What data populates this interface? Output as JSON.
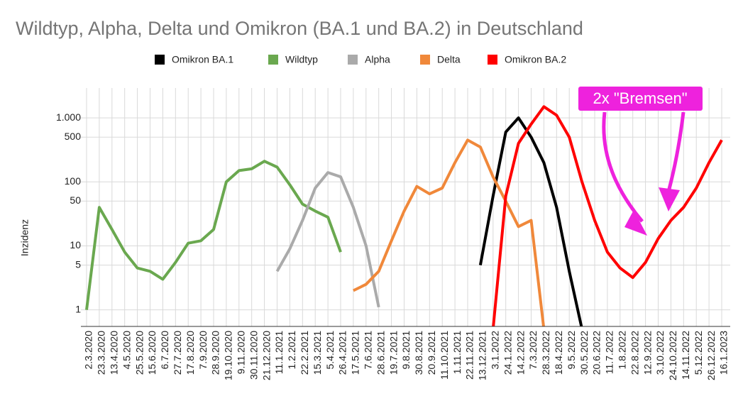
{
  "chart_data": {
    "type": "line",
    "title": "Wildtyp, Alpha, Delta und Omikron (BA.1 und BA.2) in Deutschland",
    "y_label": "Inzidenz",
    "annotation": "2x \"Bremsen\"",
    "log_scale": true,
    "grid": true,
    "legend": "top",
    "categories": [
      "2.3.2020",
      "23.3.2020",
      "13.4.2020",
      "4.5.2020",
      "25.5.2020",
      "15.6.2020",
      "6.7.2020",
      "27.7.2020",
      "17.8.2020",
      "7.9.2020",
      "28.9.2020",
      "19.10.2020",
      "9.11.2020",
      "30.11.2020",
      "21.12.2020",
      "11.1.2021",
      "1.2.2021",
      "22.2.2021",
      "15.3.2021",
      "5.4.2021",
      "26.4.2021",
      "17.5.2021",
      "7.6.2021",
      "28.6.2021",
      "19.7.2021",
      "9.8.2021",
      "30.8.2021",
      "20.9.2021",
      "11.10.2021",
      "1.11.2021",
      "22.11.2021",
      "13.12.2021",
      "3.1.2022",
      "24.1.2022",
      "14.2.2022",
      "7.3.2022",
      "28.3.2022",
      "18.4.2022",
      "9.5.2022",
      "30.5.2022",
      "20.6.2022",
      "11.7.2022",
      "1.8.2022",
      "22.8.2022",
      "12.9.2022",
      "3.10.2022",
      "24.10.2022",
      "14.11.2022",
      "5.12.2022",
      "26.12.2022",
      "16.1.2023"
    ],
    "series": [
      {
        "name": "Omikron BA.1",
        "color": "#000000",
        "values": [
          null,
          null,
          null,
          null,
          null,
          null,
          null,
          null,
          null,
          null,
          null,
          null,
          null,
          null,
          null,
          null,
          null,
          null,
          null,
          null,
          null,
          null,
          null,
          null,
          null,
          null,
          null,
          null,
          null,
          null,
          null,
          5,
          60,
          600,
          1000,
          500,
          200,
          40,
          4,
          0.5,
          null,
          null,
          null,
          null,
          null,
          null,
          null,
          null,
          null,
          null,
          null
        ]
      },
      {
        "name": "Wildtyp",
        "color": "#6aa84f",
        "values": [
          1,
          40,
          18,
          8,
          4.5,
          4,
          3,
          5.5,
          11,
          12,
          18,
          100,
          150,
          160,
          210,
          170,
          90,
          45,
          35,
          28,
          8,
          null,
          null,
          null,
          null,
          null,
          null,
          null,
          null,
          null,
          null,
          null,
          null,
          null,
          null,
          null,
          null,
          null,
          null,
          null,
          null,
          null,
          null,
          null,
          null,
          null,
          null,
          null,
          null,
          null,
          null
        ]
      },
      {
        "name": "Alpha",
        "color": "#aaaaaa",
        "values": [
          null,
          null,
          null,
          null,
          null,
          null,
          null,
          null,
          null,
          null,
          null,
          null,
          null,
          null,
          null,
          4,
          9,
          25,
          80,
          140,
          120,
          40,
          10,
          1.1,
          null,
          null,
          null,
          null,
          null,
          null,
          null,
          null,
          null,
          null,
          null,
          null,
          null,
          null,
          null,
          null,
          null,
          null,
          null,
          null,
          null,
          null,
          null,
          null,
          null,
          null,
          null
        ]
      },
      {
        "name": "Delta",
        "color": "#f0883a",
        "values": [
          null,
          null,
          null,
          null,
          null,
          null,
          null,
          null,
          null,
          null,
          null,
          null,
          null,
          null,
          null,
          null,
          null,
          null,
          null,
          null,
          null,
          2,
          2.5,
          4,
          12,
          35,
          85,
          65,
          80,
          200,
          450,
          350,
          120,
          50,
          20,
          25,
          0.5,
          null,
          null,
          null,
          null,
          null,
          null,
          null,
          null,
          null,
          null,
          null,
          null,
          null,
          null
        ]
      },
      {
        "name": "Omikron BA.2",
        "color": "#ff0000",
        "values": [
          null,
          null,
          null,
          null,
          null,
          null,
          null,
          null,
          null,
          null,
          null,
          null,
          null,
          null,
          null,
          null,
          null,
          null,
          null,
          null,
          null,
          null,
          null,
          null,
          null,
          null,
          null,
          null,
          null,
          null,
          null,
          null,
          0.5,
          60,
          400,
          800,
          1500,
          1100,
          500,
          100,
          25,
          8,
          4.5,
          3.2,
          5.5,
          13,
          25,
          40,
          80,
          200,
          450
        ]
      }
    ],
    "ylim": [
      0.55,
      2000
    ],
    "yticks": [
      1,
      5,
      10,
      50,
      100,
      500,
      {
        "value": 1000,
        "label": "1.000"
      }
    ]
  }
}
